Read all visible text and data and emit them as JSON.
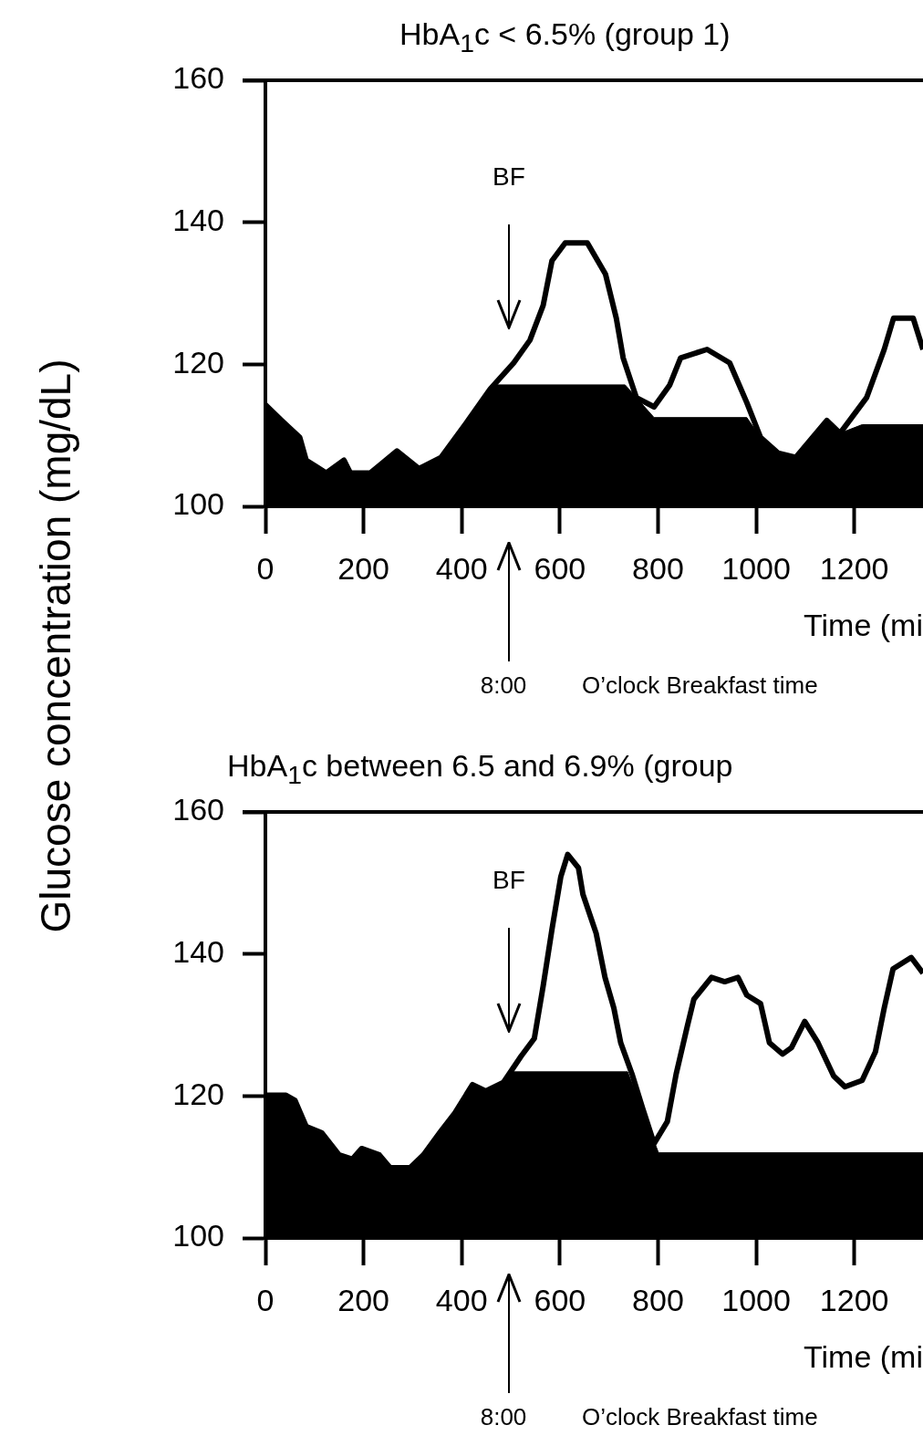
{
  "chart_data": [
    {
      "type": "line",
      "title": "HbA$_{1}$c < 6.5% (group 1)",
      "ylabel": "Glucose concentration (mg/dL)",
      "xlabel": "Time (mi",
      "xlim": [
        0,
        1340
      ],
      "xticks": [
        0,
        200,
        400,
        600,
        800,
        1000,
        1200
      ],
      "ylim": [
        100,
        160
      ],
      "yticks": [
        100,
        120,
        140,
        160
      ],
      "annotations": [
        "BF",
        "8:00",
        "O’clock Breakfast time"
      ],
      "series": [
        {
          "type": "area",
          "color": "#000000",
          "x": [
            0,
            33,
            70,
            83,
            124,
            160,
            173,
            214,
            268,
            313,
            358,
            413,
            458,
            467,
            733,
            756,
            792,
            981,
            1009,
            1045,
            1081,
            1144,
            1171,
            1216,
            1340
          ],
          "values": [
            114.3,
            112.1,
            109.7,
            106.5,
            104.7,
            106.5,
            104.7,
            104.7,
            107.8,
            105.3,
            106.9,
            112.1,
            116.5,
            117.1,
            117.1,
            115.3,
            112.5,
            112.5,
            109.7,
            107.5,
            106.9,
            112.1,
            110.3,
            111.5,
            111.5
          ]
        },
        {
          "type": "line",
          "color": "#000000",
          "x": [
            0,
            33,
            70,
            83,
            124,
            160,
            173,
            214,
            268,
            313,
            358,
            413,
            458,
            506,
            539,
            566,
            584,
            611,
            656,
            693,
            715,
            729,
            756,
            792,
            824,
            846,
            900,
            946,
            981,
            1009,
            1045,
            1081,
            1144,
            1171,
            1225,
            1261,
            1280,
            1320,
            1340
          ],
          "values": [
            114.3,
            112.1,
            109.7,
            106.5,
            104.7,
            106.5,
            104.7,
            104.7,
            107.8,
            105.3,
            106.9,
            112.1,
            116.5,
            120.2,
            123.4,
            128.3,
            134.6,
            137.1,
            137.1,
            132.7,
            126.5,
            120.9,
            115.3,
            114.0,
            117.1,
            120.9,
            122.1,
            120.2,
            114.6,
            109.7,
            107.5,
            106.9,
            112.1,
            110.3,
            115.3,
            122.1,
            126.5,
            126.5,
            122.1
          ]
        }
      ]
    },
    {
      "type": "line",
      "title": "HbA$_{1}$c between 6.5 and 6.9% (group",
      "xlabel": "Time (mi",
      "xlim": [
        0,
        1340
      ],
      "xticks": [
        0,
        200,
        400,
        600,
        800,
        1000,
        1200
      ],
      "ylim": [
        100,
        160
      ],
      "yticks": [
        100,
        120,
        140,
        160
      ],
      "annotations": [
        "BF",
        "8:00",
        "O’clock Breakfast time"
      ],
      "series": [
        {
          "type": "area",
          "color": "#000000",
          "x": [
            0,
            42,
            60,
            83,
            115,
            150,
            177,
            196,
            232,
            254,
            295,
            322,
            358,
            386,
            422,
            449,
            485,
            503,
            738,
            801,
            1340
          ],
          "values": [
            120.1,
            120.1,
            119.4,
            115.7,
            114.8,
            111.7,
            111.1,
            112.6,
            111.7,
            109.9,
            109.9,
            111.7,
            115.1,
            117.6,
            121.6,
            120.7,
            121.9,
            123.4,
            123.4,
            112.0,
            112.0
          ]
        },
        {
          "type": "line",
          "color": "#000000",
          "x": [
            0,
            42,
            60,
            83,
            115,
            150,
            177,
            196,
            232,
            254,
            295,
            322,
            358,
            386,
            422,
            449,
            485,
            521,
            548,
            566,
            584,
            602,
            616,
            638,
            647,
            674,
            692,
            710,
            724,
            747,
            769,
            792,
            819,
            837,
            860,
            873,
            909,
            936,
            963,
            981,
            1009,
            1027,
            1054,
            1072,
            1099,
            1126,
            1158,
            1181,
            1216,
            1243,
            1261,
            1279,
            1316,
            1340
          ],
          "values": [
            120.1,
            120.1,
            119.4,
            115.7,
            114.8,
            111.7,
            111.1,
            112.6,
            111.7,
            109.9,
            109.9,
            111.7,
            115.1,
            117.6,
            121.6,
            120.7,
            121.9,
            125.6,
            128.1,
            135.5,
            143.5,
            150.9,
            154.0,
            152.1,
            148.4,
            142.9,
            136.7,
            132.4,
            127.5,
            123.1,
            118.2,
            113.3,
            116.4,
            123.1,
            129.9,
            133.6,
            136.7,
            136.1,
            136.7,
            134.2,
            133.0,
            127.5,
            125.9,
            126.8,
            130.5,
            127.5,
            122.8,
            121.3,
            122.2,
            126.2,
            132.4,
            137.9,
            139.5,
            137.3
          ]
        }
      ]
    }
  ]
}
